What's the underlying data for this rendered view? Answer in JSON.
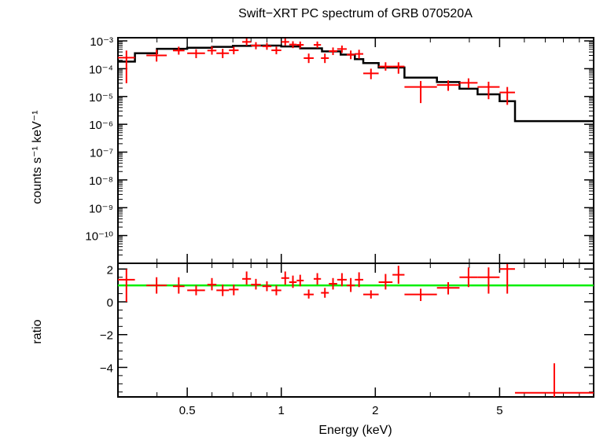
{
  "chart_data": [
    {
      "type": "scatter",
      "title": "Swift−XRT PC spectrum of GRB 070520A",
      "xlabel": "",
      "ylabel": "counts s⁻¹ keV⁻¹",
      "x_scale": "log",
      "y_scale": "log",
      "xlim": [
        0.3,
        10
      ],
      "ylim": [
        1e-11,
        0.0013
      ],
      "y_tick_labels": [
        "10⁻³",
        "10⁻⁴",
        "10⁻⁵",
        "10⁻⁶",
        "10⁻⁷",
        "10⁻⁸",
        "10⁻⁹",
        "10⁻¹⁰"
      ],
      "series": [
        {
          "kind": "data",
          "color": "#ff0000",
          "points": [
            {
              "xlo": 0.3,
              "xhi": 0.34,
              "y": 0.00025,
              "ylo": 3e-05,
              "yhi": 0.00045
            },
            {
              "xlo": 0.37,
              "xhi": 0.43,
              "y": 0.0003,
              "ylo": 0.00018,
              "yhi": 0.00048
            },
            {
              "xlo": 0.45,
              "xhi": 0.49,
              "y": 0.00045,
              "ylo": 0.00032,
              "yhi": 0.00062
            },
            {
              "xlo": 0.5,
              "xhi": 0.57,
              "y": 0.00036,
              "ylo": 0.00024,
              "yhi": 0.0005
            },
            {
              "xlo": 0.58,
              "xhi": 0.62,
              "y": 0.00045,
              "ylo": 0.00032,
              "yhi": 0.00063
            },
            {
              "xlo": 0.62,
              "xhi": 0.68,
              "y": 0.00036,
              "ylo": 0.00024,
              "yhi": 0.00052
            },
            {
              "xlo": 0.68,
              "xhi": 0.73,
              "y": 0.00046,
              "ylo": 0.00033,
              "yhi": 0.00062
            },
            {
              "xlo": 0.75,
              "xhi": 0.8,
              "y": 0.00092,
              "ylo": 0.00068,
              "yhi": 0.00122
            },
            {
              "xlo": 0.8,
              "xhi": 0.86,
              "y": 0.00068,
              "ylo": 0.0005,
              "yhi": 0.0009
            },
            {
              "xlo": 0.87,
              "xhi": 0.93,
              "y": 0.00064,
              "ylo": 0.00048,
              "yhi": 0.00085
            },
            {
              "xlo": 0.93,
              "xhi": 1.0,
              "y": 0.00046,
              "ylo": 0.00033,
              "yhi": 0.00062
            },
            {
              "xlo": 1.0,
              "xhi": 1.06,
              "y": 0.00092,
              "ylo": 0.00068,
              "yhi": 0.00122
            },
            {
              "xlo": 1.06,
              "xhi": 1.12,
              "y": 0.00074,
              "ylo": 0.00055,
              "yhi": 0.00097
            },
            {
              "xlo": 1.12,
              "xhi": 1.18,
              "y": 0.00072,
              "ylo": 0.00054,
              "yhi": 0.00095
            },
            {
              "xlo": 1.18,
              "xhi": 1.27,
              "y": 0.00024,
              "ylo": 0.00016,
              "yhi": 0.00035
            },
            {
              "xlo": 1.27,
              "xhi": 1.34,
              "y": 0.00072,
              "ylo": 0.00055,
              "yhi": 0.00095
            },
            {
              "xlo": 1.34,
              "xhi": 1.42,
              "y": 0.00024,
              "ylo": 0.00016,
              "yhi": 0.00035
            },
            {
              "xlo": 1.42,
              "xhi": 1.51,
              "y": 0.00043,
              "ylo": 0.00031,
              "yhi": 0.00058
            },
            {
              "xlo": 1.51,
              "xhi": 1.62,
              "y": 0.00051,
              "ylo": 0.00037,
              "yhi": 0.00068
            },
            {
              "xlo": 1.62,
              "xhi": 1.72,
              "y": 0.00032,
              "ylo": 0.00022,
              "yhi": 0.00045
            },
            {
              "xlo": 1.72,
              "xhi": 1.83,
              "y": 0.00034,
              "ylo": 0.00023,
              "yhi": 0.00048
            },
            {
              "xlo": 1.83,
              "xhi": 2.05,
              "y": 6.8e-05,
              "ylo": 4.2e-05,
              "yhi": 0.0001
            },
            {
              "xlo": 2.05,
              "xhi": 2.27,
              "y": 0.00012,
              "ylo": 8.5e-05,
              "yhi": 0.00017
            },
            {
              "xlo": 2.27,
              "xhi": 2.48,
              "y": 0.00012,
              "ylo": 6.6e-05,
              "yhi": 0.00017
            },
            {
              "xlo": 2.48,
              "xhi": 3.15,
              "y": 2.2e-05,
              "ylo": 5.8e-06,
              "yhi": 3.6e-05
            },
            {
              "xlo": 3.15,
              "xhi": 3.72,
              "y": 2.6e-05,
              "ylo": 1.6e-05,
              "yhi": 3.8e-05
            },
            {
              "xlo": 3.72,
              "xhi": 4.25,
              "y": 3.1e-05,
              "ylo": 2e-05,
              "yhi": 4.5e-05
            },
            {
              "xlo": 4.25,
              "xhi": 5.0,
              "y": 2.2e-05,
              "ylo": 8e-06,
              "yhi": 3.4e-05
            },
            {
              "xlo": 5.0,
              "xhi": 5.6,
              "y": 1.4e-05,
              "ylo": 5e-06,
              "yhi": 2.2e-05
            }
          ]
        },
        {
          "kind": "model",
          "color": "#000000",
          "steps": [
            {
              "xlo": 0.3,
              "xhi": 0.34,
              "y": 0.00018
            },
            {
              "xlo": 0.34,
              "xhi": 0.4,
              "y": 0.00036
            },
            {
              "xlo": 0.4,
              "xhi": 0.5,
              "y": 0.00052
            },
            {
              "xlo": 0.5,
              "xhi": 0.6,
              "y": 0.00057
            },
            {
              "xlo": 0.6,
              "xhi": 0.7,
              "y": 0.00061
            },
            {
              "xlo": 0.7,
              "xhi": 0.8,
              "y": 0.00066
            },
            {
              "xlo": 0.8,
              "xhi": 1.0,
              "y": 0.00068
            },
            {
              "xlo": 1.0,
              "xhi": 1.15,
              "y": 0.00063
            },
            {
              "xlo": 1.15,
              "xhi": 1.35,
              "y": 0.00054
            },
            {
              "xlo": 1.35,
              "xhi": 1.55,
              "y": 0.00042
            },
            {
              "xlo": 1.55,
              "xhi": 1.72,
              "y": 0.00032
            },
            {
              "xlo": 1.72,
              "xhi": 1.83,
              "y": 0.00022
            },
            {
              "xlo": 1.83,
              "xhi": 2.05,
              "y": 0.00016
            },
            {
              "xlo": 2.05,
              "xhi": 2.48,
              "y": 0.00011
            },
            {
              "xlo": 2.48,
              "xhi": 3.15,
              "y": 4.8e-05
            },
            {
              "xlo": 3.15,
              "xhi": 3.72,
              "y": 3.3e-05
            },
            {
              "xlo": 3.72,
              "xhi": 4.25,
              "y": 1.9e-05
            },
            {
              "xlo": 4.25,
              "xhi": 5.0,
              "y": 1.2e-05
            },
            {
              "xlo": 5.0,
              "xhi": 5.6,
              "y": 6.8e-06
            },
            {
              "xlo": 5.6,
              "xhi": 10.0,
              "y": 1.3e-06
            }
          ]
        }
      ]
    },
    {
      "type": "scatter",
      "title": "",
      "xlabel": "Energy (keV)",
      "ylabel": "ratio",
      "x_scale": "log",
      "y_scale": "linear",
      "xlim": [
        0.3,
        10
      ],
      "ylim": [
        -5.8,
        2.35
      ],
      "x_tick_labels": [
        "0.5",
        "1",
        "2",
        "5"
      ],
      "x_ticks": [
        0.5,
        1,
        2,
        5
      ],
      "y_tick_labels": [
        "2",
        "0",
        "−2",
        "−4"
      ],
      "y_ticks": [
        2,
        0,
        -2,
        -4
      ],
      "reference_line": {
        "y": 1.0,
        "color": "#00ee00"
      },
      "series": [
        {
          "kind": "ratio",
          "color": "#ff0000",
          "points": [
            {
              "xlo": 0.3,
              "xhi": 0.34,
              "y": 1.35,
              "ylo": 0.0,
              "yhi": 2.0
            },
            {
              "xlo": 0.37,
              "xhi": 0.43,
              "y": 1.0,
              "ylo": 0.5,
              "yhi": 1.5
            },
            {
              "xlo": 0.45,
              "xhi": 0.49,
              "y": 0.95,
              "ylo": 0.5,
              "yhi": 1.5
            },
            {
              "xlo": 0.5,
              "xhi": 0.57,
              "y": 0.7,
              "ylo": 0.4,
              "yhi": 1.0
            },
            {
              "xlo": 0.58,
              "xhi": 0.62,
              "y": 1.05,
              "ylo": 0.7,
              "yhi": 1.45
            },
            {
              "xlo": 0.62,
              "xhi": 0.68,
              "y": 0.7,
              "ylo": 0.35,
              "yhi": 1.05
            },
            {
              "xlo": 0.68,
              "xhi": 0.73,
              "y": 0.75,
              "ylo": 0.4,
              "yhi": 1.05
            },
            {
              "xlo": 0.75,
              "xhi": 0.8,
              "y": 1.4,
              "ylo": 1.05,
              "yhi": 1.85
            },
            {
              "xlo": 0.8,
              "xhi": 0.86,
              "y": 1.05,
              "ylo": 0.75,
              "yhi": 1.4
            },
            {
              "xlo": 0.87,
              "xhi": 0.93,
              "y": 0.95,
              "ylo": 0.65,
              "yhi": 1.25
            },
            {
              "xlo": 0.93,
              "xhi": 1.0,
              "y": 0.7,
              "ylo": 0.4,
              "yhi": 1.0
            },
            {
              "xlo": 1.0,
              "xhi": 1.06,
              "y": 1.45,
              "ylo": 1.05,
              "yhi": 1.85
            },
            {
              "xlo": 1.06,
              "xhi": 1.12,
              "y": 1.2,
              "ylo": 0.85,
              "yhi": 1.6
            },
            {
              "xlo": 1.12,
              "xhi": 1.18,
              "y": 1.3,
              "ylo": 0.95,
              "yhi": 1.65
            },
            {
              "xlo": 1.18,
              "xhi": 1.27,
              "y": 0.45,
              "ylo": 0.2,
              "yhi": 0.75
            },
            {
              "xlo": 1.27,
              "xhi": 1.34,
              "y": 1.4,
              "ylo": 1.05,
              "yhi": 1.75
            },
            {
              "xlo": 1.34,
              "xhi": 1.42,
              "y": 0.55,
              "ylo": 0.25,
              "yhi": 0.85
            },
            {
              "xlo": 1.42,
              "xhi": 1.51,
              "y": 1.1,
              "ylo": 0.75,
              "yhi": 1.45
            },
            {
              "xlo": 1.51,
              "xhi": 1.62,
              "y": 1.35,
              "ylo": 0.95,
              "yhi": 1.75
            },
            {
              "xlo": 1.62,
              "xhi": 1.72,
              "y": 1.0,
              "ylo": 0.6,
              "yhi": 1.45
            },
            {
              "xlo": 1.72,
              "xhi": 1.83,
              "y": 1.35,
              "ylo": 0.9,
              "yhi": 1.8
            },
            {
              "xlo": 1.83,
              "xhi": 2.05,
              "y": 0.45,
              "ylo": 0.2,
              "yhi": 0.7
            },
            {
              "xlo": 2.05,
              "xhi": 2.27,
              "y": 1.2,
              "ylo": 0.75,
              "yhi": 1.7
            },
            {
              "xlo": 2.27,
              "xhi": 2.48,
              "y": 1.65,
              "ylo": 1.1,
              "yhi": 2.2
            },
            {
              "xlo": 2.48,
              "xhi": 3.15,
              "y": 0.45,
              "ylo": 0.05,
              "yhi": 0.8
            },
            {
              "xlo": 3.15,
              "xhi": 3.72,
              "y": 0.85,
              "ylo": 0.45,
              "yhi": 1.2
            },
            {
              "xlo": 3.72,
              "xhi": 4.25,
              "y": 1.5,
              "ylo": 0.9,
              "yhi": 2.1
            },
            {
              "xlo": 4.25,
              "xhi": 5.0,
              "y": 1.5,
              "ylo": 0.5,
              "yhi": 2.1
            },
            {
              "xlo": 5.0,
              "xhi": 5.6,
              "y": 2.0,
              "ylo": 0.5,
              "yhi": 2.3
            },
            {
              "xlo": 5.6,
              "xhi": 10.0,
              "y": -5.55,
              "ylo": -5.8,
              "yhi": -3.75
            }
          ]
        }
      ]
    }
  ]
}
